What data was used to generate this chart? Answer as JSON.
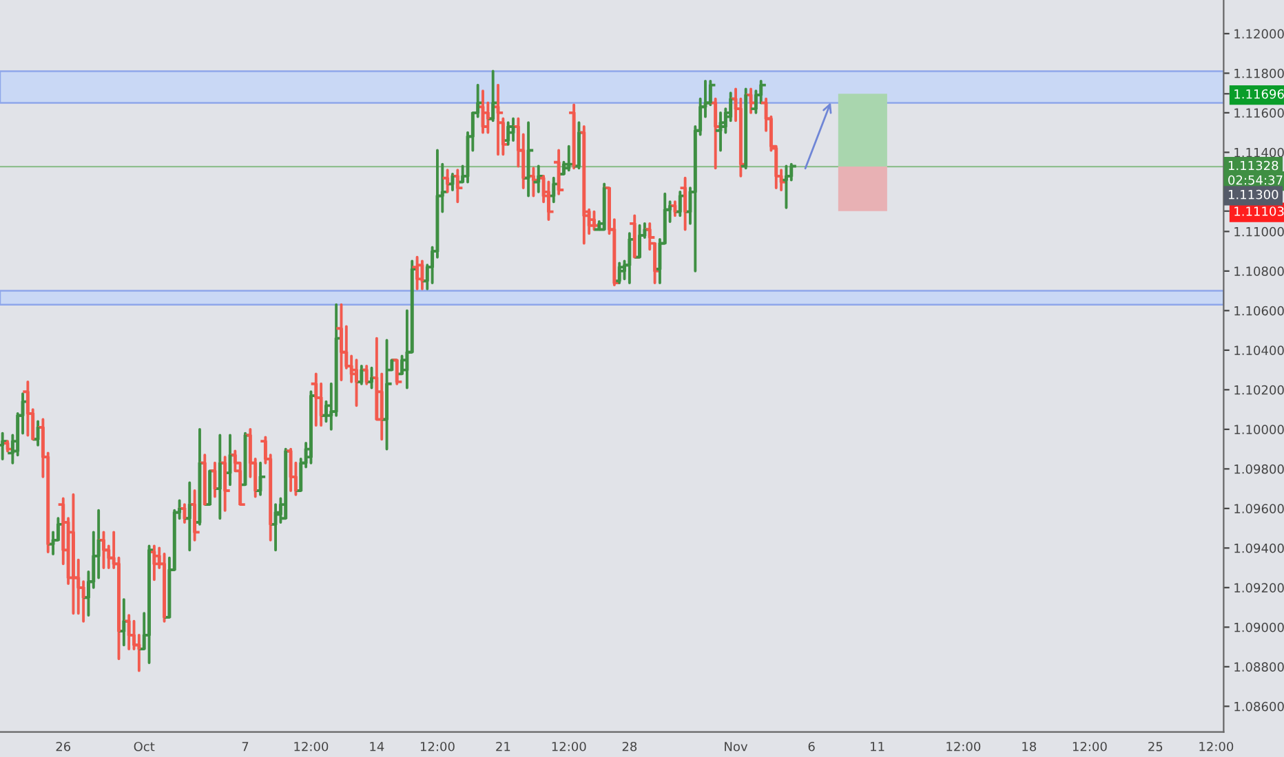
{
  "chart_data": {
    "type": "candlestick",
    "categories": [
      null,
      null,
      null,
      null,
      null,
      null,
      null,
      null,
      null,
      null,
      null,
      null,
      "26",
      null,
      null,
      null,
      null,
      null,
      null,
      null,
      null,
      null,
      null,
      null,
      null,
      null,
      null,
      null,
      "Oct",
      null,
      null,
      null,
      null,
      null,
      null,
      null,
      null,
      null,
      null,
      null,
      null,
      null,
      null,
      null,
      null,
      null,
      null,
      null,
      "7",
      null,
      null,
      null,
      null,
      null,
      null,
      null,
      null,
      null,
      null,
      null,
      null,
      "12:00",
      null,
      null,
      null,
      null,
      null,
      null,
      null,
      null,
      null,
      null,
      null,
      null,
      "14",
      null,
      null,
      null,
      null,
      null,
      null,
      null,
      null,
      null,
      null,
      null,
      "12:00",
      null,
      null,
      null,
      null,
      null,
      null,
      null,
      null,
      null,
      null,
      null,
      null,
      "21",
      null,
      null,
      null,
      null,
      null,
      null,
      null,
      null,
      null,
      null,
      null,
      null,
      "12:00",
      null,
      null,
      null,
      null,
      null,
      null,
      null,
      null,
      null,
      null,
      null,
      "28",
      null,
      null,
      null,
      null,
      null,
      null,
      null,
      null,
      null,
      null,
      null,
      null,
      null,
      null,
      null,
      null,
      null,
      null,
      null,
      null,
      "Nov",
      null,
      null,
      null,
      null,
      null,
      null,
      null,
      null,
      null,
      null,
      null,
      null,
      null,
      null,
      "6",
      null,
      null,
      null,
      null,
      null,
      null,
      null,
      null,
      null,
      null,
      null,
      null,
      "11",
      null,
      null,
      null,
      null,
      null,
      null,
      null,
      null,
      null,
      null,
      null,
      null,
      null,
      null,
      null,
      null,
      "12:00",
      null,
      null,
      null,
      null,
      null,
      null,
      null,
      null,
      null,
      null,
      null,
      null,
      "18",
      null,
      null,
      null,
      null,
      null,
      null,
      null,
      null,
      null,
      null,
      null,
      "12:00",
      null,
      null,
      null,
      null,
      null,
      null,
      null,
      null,
      null,
      null,
      null,
      null,
      "25",
      null,
      null,
      null,
      null,
      null,
      null,
      null,
      null,
      null,
      null,
      null,
      "12:00",
      null
    ],
    "ohlc": [
      [
        1.0992,
        1.0998,
        1.0985,
        1.0994
      ],
      [
        1.0993,
        1.0994,
        1.0989,
        1.099
      ],
      [
        1.0988,
        1.0997,
        1.0983,
        1.0994
      ],
      [
        1.0989,
        1.1008,
        1.0987,
        1.1007
      ],
      [
        1.1007,
        1.1018,
        1.0998,
        1.1014
      ],
      [
        1.1019,
        1.1024,
        1.0997,
        1.1008
      ],
      [
        1.1008,
        1.101,
        1.0995,
        1.0995
      ],
      [
        1.0995,
        1.1004,
        1.0992,
        1.1001
      ],
      [
        1.1001,
        1.1005,
        1.0976,
        1.0986
      ],
      [
        1.0986,
        1.0988,
        1.0938,
        1.0942
      ],
      [
        1.0942,
        1.0948,
        1.0937,
        1.0944
      ],
      [
        1.0944,
        1.0955,
        1.0944,
        1.0952
      ],
      [
        1.0962,
        1.0965,
        1.0932,
        1.0939
      ],
      [
        1.0953,
        1.0955,
        1.0922,
        1.0925
      ],
      [
        1.0948,
        1.0967,
        1.0907,
        1.0925
      ],
      [
        1.0925,
        1.0934,
        1.0907,
        1.092
      ],
      [
        1.092,
        1.0923,
        1.0903,
        1.0915
      ],
      [
        1.0915,
        1.0928,
        1.0906,
        1.0923
      ],
      [
        1.0923,
        1.0948,
        1.092,
        1.0936
      ],
      [
        1.0936,
        1.0959,
        1.0925,
        1.0944
      ],
      [
        1.0944,
        1.0948,
        1.093,
        1.0939
      ],
      [
        1.0939,
        1.0941,
        1.093,
        1.0935
      ],
      [
        1.0935,
        1.0948,
        1.093,
        1.0932
      ],
      [
        1.0932,
        1.0935,
        1.0884,
        1.0898
      ],
      [
        1.0898,
        1.0914,
        1.0891,
        1.0903
      ],
      [
        1.0903,
        1.0906,
        1.0889,
        1.0896
      ],
      [
        1.0896,
        1.0903,
        1.0889,
        1.0891
      ],
      [
        1.0891,
        1.0896,
        1.0878,
        1.0889
      ],
      [
        1.0889,
        1.0907,
        1.0889,
        1.0896
      ],
      [
        1.0896,
        1.0941,
        1.0882,
        1.0939
      ],
      [
        1.0938,
        1.0941,
        1.0924,
        1.0932
      ],
      [
        1.0936,
        1.094,
        1.093,
        1.0932
      ],
      [
        1.0932,
        1.0937,
        1.0903,
        1.0905
      ],
      [
        1.0905,
        1.0935,
        1.0905,
        1.0929
      ],
      [
        1.0929,
        1.0959,
        1.0929,
        1.0958
      ],
      [
        1.0958,
        1.0964,
        1.0955,
        1.096
      ],
      [
        1.096,
        1.0962,
        1.0953,
        1.0955
      ],
      [
        1.0955,
        1.0973,
        1.0939,
        1.0962
      ],
      [
        1.0962,
        1.0969,
        1.0944,
        1.0948
      ],
      [
        1.0953,
        1.1,
        1.0952,
        1.0983
      ],
      [
        1.0983,
        1.0987,
        1.0962,
        1.0962
      ],
      [
        1.0962,
        1.0979,
        1.0962,
        1.0979
      ],
      [
        1.0979,
        1.0983,
        1.0966,
        1.097
      ],
      [
        1.097,
        1.0997,
        1.0955,
        1.0983
      ],
      [
        1.0983,
        1.0986,
        1.0959,
        1.0969
      ],
      [
        1.0978,
        1.0997,
        1.0972,
        1.0987
      ],
      [
        1.0987,
        1.0989,
        1.0979,
        1.0983
      ],
      [
        1.0979,
        1.0983,
        1.0962,
        1.0962
      ],
      [
        1.0972,
        1.0998,
        1.0972,
        1.0997
      ],
      [
        1.0997,
        1.1,
        1.0976,
        1.0983
      ],
      [
        1.0983,
        1.0985,
        1.0966,
        1.0969
      ],
      [
        1.0969,
        1.0983,
        1.0967,
        1.0976
      ],
      [
        1.0994,
        1.0996,
        1.0983,
        1.0985
      ],
      [
        1.0985,
        1.0987,
        1.0944,
        1.0952
      ],
      [
        1.0952,
        1.0962,
        1.0939,
        1.0958
      ],
      [
        1.0957,
        1.0965,
        1.0953,
        1.0962
      ],
      [
        1.0955,
        1.099,
        1.0955,
        1.0989
      ],
      [
        1.0989,
        1.099,
        1.0969,
        1.0976
      ],
      [
        1.0976,
        1.0983,
        1.0967,
        1.0969
      ],
      [
        1.0969,
        1.0985,
        1.0969,
        1.0983
      ],
      [
        1.0983,
        1.0993,
        1.0981,
        1.099
      ],
      [
        1.0986,
        1.1019,
        1.0983,
        1.1017
      ],
      [
        1.1023,
        1.1028,
        1.1002,
        1.1016
      ],
      [
        1.1016,
        1.1023,
        1.1002,
        1.1007
      ],
      [
        1.1007,
        1.1014,
        1.1004,
        1.1012
      ],
      [
        1.1007,
        1.1023,
        1.1,
        1.1009
      ],
      [
        1.1009,
        1.1063,
        1.1007,
        1.1046
      ],
      [
        1.1051,
        1.1063,
        1.1025,
        1.1039
      ],
      [
        1.1039,
        1.1052,
        1.1031,
        1.1032
      ],
      [
        1.1032,
        1.1037,
        1.1024,
        1.1028
      ],
      [
        1.103,
        1.1035,
        1.1012,
        1.1024
      ],
      [
        1.1024,
        1.1032,
        1.1023,
        1.103
      ],
      [
        1.103,
        1.1032,
        1.1023,
        1.1024
      ],
      [
        1.1024,
        1.1031,
        1.1021,
        1.1026
      ],
      [
        1.1026,
        1.1046,
        1.1005,
        1.1005
      ],
      [
        1.1019,
        1.1028,
        1.0995,
        1.1005
      ],
      [
        1.1005,
        1.1045,
        1.099,
        1.1023
      ],
      [
        1.103,
        1.1035,
        1.103,
        1.1035
      ],
      [
        1.1035,
        1.1035,
        1.1023,
        1.1024
      ],
      [
        1.1028,
        1.1037,
        1.1028,
        1.1035
      ],
      [
        1.103,
        1.106,
        1.1021,
        1.1039
      ],
      [
        1.1039,
        1.1085,
        1.1039,
        1.1081
      ],
      [
        1.1082,
        1.1087,
        1.1071,
        1.1076
      ],
      [
        1.1083,
        1.1085,
        1.1071,
        1.1075
      ],
      [
        1.1075,
        1.1083,
        1.1071,
        1.1082
      ],
      [
        1.1082,
        1.1092,
        1.1074,
        1.109
      ],
      [
        1.109,
        1.1141,
        1.1087,
        1.1118
      ],
      [
        1.1118,
        1.1134,
        1.111,
        1.112
      ],
      [
        1.1127,
        1.1131,
        1.112,
        1.1124
      ],
      [
        1.1124,
        1.1129,
        1.1121,
        1.1128
      ],
      [
        1.1128,
        1.1131,
        1.1115,
        1.1122
      ],
      [
        1.1125,
        1.1133,
        1.1125,
        1.1128
      ],
      [
        1.1128,
        1.115,
        1.1125,
        1.1148
      ],
      [
        1.1148,
        1.116,
        1.1141,
        1.116
      ],
      [
        1.116,
        1.1174,
        1.1158,
        1.1165
      ],
      [
        1.1163,
        1.1171,
        1.115,
        1.1153
      ],
      [
        1.116,
        1.1165,
        1.115,
        1.1157
      ],
      [
        1.1157,
        1.1181,
        1.1156,
        1.1165
      ],
      [
        1.1163,
        1.1174,
        1.1139,
        1.116
      ],
      [
        1.1155,
        1.1157,
        1.1139,
        1.1144
      ],
      [
        1.1146,
        1.1155,
        1.1144,
        1.1153
      ],
      [
        1.115,
        1.1157,
        1.1146,
        1.1153
      ],
      [
        1.1153,
        1.1157,
        1.1133,
        1.1141
      ],
      [
        1.1141,
        1.1149,
        1.1122,
        1.1127
      ],
      [
        1.1127,
        1.1155,
        1.1118,
        1.1141
      ],
      [
        1.1128,
        1.1132,
        1.1118,
        1.1126
      ],
      [
        1.1125,
        1.1133,
        1.112,
        1.1128
      ],
      [
        1.1127,
        1.1128,
        1.1115,
        1.1118
      ],
      [
        1.112,
        1.1125,
        1.1106,
        1.111
      ],
      [
        1.1118,
        1.1127,
        1.1115,
        1.1124
      ],
      [
        1.1135,
        1.1141,
        1.1119,
        1.1121
      ],
      [
        1.1129,
        1.1135,
        1.1129,
        1.1134
      ],
      [
        1.1132,
        1.1143,
        1.1131,
        1.1134
      ],
      [
        1.116,
        1.1164,
        1.1132,
        1.1133
      ],
      [
        1.1133,
        1.1155,
        1.1132,
        1.115
      ],
      [
        1.115,
        1.1153,
        1.1094,
        1.1108
      ],
      [
        1.111,
        1.1111,
        1.1099,
        1.1103
      ],
      [
        1.1106,
        1.111,
        1.1101,
        1.1103
      ],
      [
        1.1101,
        1.1105,
        1.1101,
        1.1104
      ],
      [
        1.1101,
        1.1124,
        1.1101,
        1.1122
      ],
      [
        1.1122,
        1.1122,
        1.1099,
        1.1101
      ],
      [
        1.1101,
        1.1106,
        1.1073,
        1.1074
      ],
      [
        1.1075,
        1.1084,
        1.1074,
        1.1082
      ],
      [
        1.108,
        1.1085,
        1.1076,
        1.1083
      ],
      [
        1.1083,
        1.1099,
        1.1074,
        1.1096
      ],
      [
        1.1104,
        1.1108,
        1.1087,
        1.1087
      ],
      [
        1.1087,
        1.1103,
        1.1087,
        1.1098
      ],
      [
        1.1098,
        1.1104,
        1.1097,
        1.1101
      ],
      [
        1.1101,
        1.1104,
        1.1091,
        1.1097
      ],
      [
        1.1094,
        1.1094,
        1.1074,
        1.108
      ],
      [
        1.1081,
        1.1096,
        1.1074,
        1.1094
      ],
      [
        1.1094,
        1.1119,
        1.1094,
        1.1111
      ],
      [
        1.1111,
        1.1115,
        1.1105,
        1.1113
      ],
      [
        1.1113,
        1.1115,
        1.1108,
        1.111
      ],
      [
        1.111,
        1.112,
        1.1108,
        1.1118
      ],
      [
        1.1122,
        1.1127,
        1.1101,
        1.111
      ],
      [
        1.111,
        1.1122,
        1.1104,
        1.112
      ],
      [
        1.112,
        1.1153,
        1.108,
        1.1151
      ],
      [
        1.1151,
        1.1167,
        1.1149,
        1.1163
      ],
      [
        1.1163,
        1.1176,
        1.1158,
        1.1165
      ],
      [
        1.1165,
        1.1176,
        1.1164,
        1.1174
      ],
      [
        1.1165,
        1.1167,
        1.1132,
        1.1153
      ],
      [
        1.1151,
        1.116,
        1.1141,
        1.1155
      ],
      [
        1.1153,
        1.1162,
        1.115,
        1.116
      ],
      [
        1.1158,
        1.117,
        1.1156,
        1.1167
      ],
      [
        1.1167,
        1.1172,
        1.1156,
        1.1162
      ],
      [
        1.1162,
        1.1167,
        1.1128,
        1.1134
      ],
      [
        1.1133,
        1.1172,
        1.1132,
        1.1169
      ],
      [
        1.1169,
        1.1172,
        1.116,
        1.1165
      ],
      [
        1.1162,
        1.1171,
        1.116,
        1.1169
      ],
      [
        1.1169,
        1.1176,
        1.1165,
        1.1174
      ],
      [
        1.1165,
        1.1167,
        1.1151,
        1.1157
      ],
      [
        1.1157,
        1.1158,
        1.1141,
        1.1143
      ],
      [
        1.1142,
        1.1143,
        1.1122,
        1.1128
      ],
      [
        1.1128,
        1.1131,
        1.1121,
        1.1125
      ],
      [
        1.1126,
        1.1133,
        1.1112,
        1.1128
      ],
      [
        1.1128,
        1.1134,
        1.1126,
        1.1133
      ],
      null,
      null,
      null,
      null,
      null,
      null,
      null,
      null,
      null,
      null,
      null,
      null,
      null,
      null,
      null,
      null,
      null,
      null,
      null,
      null,
      null,
      null,
      null,
      null,
      null,
      null,
      null,
      null,
      null,
      null,
      null,
      null,
      null,
      null,
      null,
      null,
      null,
      null,
      null,
      null,
      null,
      null,
      null,
      null,
      null,
      null,
      null,
      null,
      null,
      null,
      null,
      null,
      null,
      null,
      null,
      null,
      null,
      null,
      null,
      null,
      null,
      null,
      null,
      null,
      null,
      null,
      null,
      null,
      null,
      null,
      null,
      null,
      null,
      null,
      null,
      null,
      null,
      null,
      null,
      null,
      null,
      null,
      null,
      null,
      null
    ],
    "colors": [
      "#3f8f43",
      "#f25a4e",
      "#3f8f43",
      "#3f8f43",
      "#3f8f43",
      "#f25a4e",
      "#f25a4e",
      "#3f8f43",
      "#f25a4e",
      "#f25a4e",
      "#3f8f43",
      "#3f8f43",
      "#f25a4e",
      "#f25a4e",
      "#f25a4e",
      "#f25a4e",
      "#f25a4e",
      "#3f8f43",
      "#3f8f43",
      "#3f8f43",
      "#f25a4e",
      "#f25a4e",
      "#f25a4e",
      "#f25a4e",
      "#3f8f43",
      "#f25a4e",
      "#f25a4e",
      "#f25a4e",
      "#3f8f43",
      "#3f8f43",
      "#f25a4e",
      "#f25a4e",
      "#f25a4e",
      "#3f8f43",
      "#3f8f43",
      "#3f8f43",
      "#f25a4e",
      "#3f8f43",
      "#f25a4e",
      "#3f8f43",
      "#f25a4e",
      "#3f8f43",
      "#f25a4e",
      "#3f8f43",
      "#f25a4e",
      "#3f8f43",
      "#f25a4e",
      "#f25a4e",
      "#3f8f43",
      "#f25a4e",
      "#f25a4e",
      "#3f8f43",
      "#f25a4e",
      "#f25a4e",
      "#3f8f43",
      "#3f8f43",
      "#3f8f43",
      "#f25a4e",
      "#f25a4e",
      "#3f8f43",
      "#3f8f43",
      "#3f8f43",
      "#f25a4e",
      "#f25a4e",
      "#3f8f43",
      "#3f8f43",
      "#3f8f43",
      "#f25a4e",
      "#f25a4e",
      "#f25a4e",
      "#f25a4e",
      "#3f8f43",
      "#f25a4e",
      "#3f8f43",
      "#f25a4e",
      "#f25a4e",
      "#3f8f43",
      "#3f8f43",
      "#f25a4e",
      "#3f8f43",
      "#3f8f43",
      "#3f8f43",
      "#f25a4e",
      "#f25a4e",
      "#3f8f43",
      "#3f8f43",
      "#3f8f43",
      "#3f8f43",
      "#f25a4e",
      "#3f8f43",
      "#f25a4e",
      "#3f8f43",
      "#3f8f43",
      "#3f8f43",
      "#3f8f43",
      "#f25a4e",
      "#f25a4e",
      "#3f8f43",
      "#f25a4e",
      "#f25a4e",
      "#3f8f43",
      "#3f8f43",
      "#f25a4e",
      "#f25a4e",
      "#3f8f43",
      "#f25a4e",
      "#3f8f43",
      "#f25a4e",
      "#f25a4e",
      "#3f8f43",
      "#f25a4e",
      "#3f8f43",
      "#3f8f43",
      "#f25a4e",
      "#3f8f43",
      "#f25a4e",
      "#f25a4e",
      "#f25a4e",
      "#3f8f43",
      "#3f8f43",
      "#f25a4e",
      "#f25a4e",
      "#3f8f43",
      "#3f8f43",
      "#3f8f43",
      "#f25a4e",
      "#3f8f43",
      "#3f8f43",
      "#f25a4e",
      "#f25a4e",
      "#3f8f43",
      "#3f8f43",
      "#3f8f43",
      "#f25a4e",
      "#3f8f43",
      "#f25a4e",
      "#3f8f43",
      "#3f8f43",
      "#3f8f43",
      "#3f8f43",
      "#3f8f43",
      "#f25a4e",
      "#3f8f43",
      "#3f8f43",
      "#3f8f43",
      "#f25a4e",
      "#f25a4e",
      "#3f8f43",
      "#f25a4e",
      "#3f8f43",
      "#3f8f43",
      "#f25a4e",
      "#f25a4e",
      "#f25a4e",
      "#f25a4e",
      "#3f8f43",
      "#3f8f43",
      null,
      null,
      null,
      null,
      null,
      null,
      null,
      null,
      null,
      null,
      null,
      null,
      null,
      null,
      null,
      null,
      null,
      null,
      null,
      null,
      null,
      null,
      null,
      null,
      null,
      null,
      null,
      null,
      null,
      null,
      null,
      null,
      null,
      null,
      null,
      null,
      null,
      null,
      null,
      null,
      null,
      null,
      null,
      null,
      null,
      null,
      null,
      null,
      null,
      null,
      null,
      null,
      null,
      null,
      null,
      null,
      null,
      null,
      null,
      null,
      null,
      null,
      null,
      null,
      null,
      null,
      null,
      null,
      null,
      null,
      null,
      null,
      null,
      null,
      null,
      null,
      null,
      null,
      null,
      null,
      null,
      null,
      null,
      null,
      null
    ],
    "ylim": [
      1.0847,
      1.1217
    ],
    "yticks": [
      {
        "value": 1.086,
        "label": "1.08600"
      },
      {
        "value": 1.088,
        "label": "1.08800"
      },
      {
        "value": 1.09,
        "label": "1.09000"
      },
      {
        "value": 1.092,
        "label": "1.09200"
      },
      {
        "value": 1.094,
        "label": "1.09400"
      },
      {
        "value": 1.096,
        "label": "1.09600"
      },
      {
        "value": 1.098,
        "label": "1.09800"
      },
      {
        "value": 1.1,
        "label": "1.10000"
      },
      {
        "value": 1.102,
        "label": "1.10200"
      },
      {
        "value": 1.104,
        "label": "1.10400"
      },
      {
        "value": 1.106,
        "label": "1.10600"
      },
      {
        "value": 1.108,
        "label": "1.10800"
      },
      {
        "value": 1.11,
        "label": "1.11000"
      },
      {
        "value": 1.11103,
        "label": "1.11103"
      },
      {
        "value": 1.114,
        "label": "1.11400"
      },
      {
        "value": 1.116,
        "label": "1.11600"
      },
      {
        "value": 1.11696,
        "label": "1.11696"
      },
      {
        "value": 1.118,
        "label": "1.11800"
      },
      {
        "value": 1.12,
        "label": "1.12000"
      }
    ],
    "bands": [
      {
        "axis": "y",
        "from": 1.1165,
        "to": 1.1181,
        "color": "#c9d8f5"
      },
      {
        "axis": "y",
        "from": 1.1063,
        "to": 1.107,
        "color": "#c9d8f5"
      }
    ],
    "ref_lines": [
      {
        "axis": "y",
        "value": 1.11328,
        "label": "1.11328",
        "color": "#8fbf8f"
      }
    ],
    "annotations": [
      "02:54:37",
      "1.11300"
    ],
    "grid": false
  }
}
